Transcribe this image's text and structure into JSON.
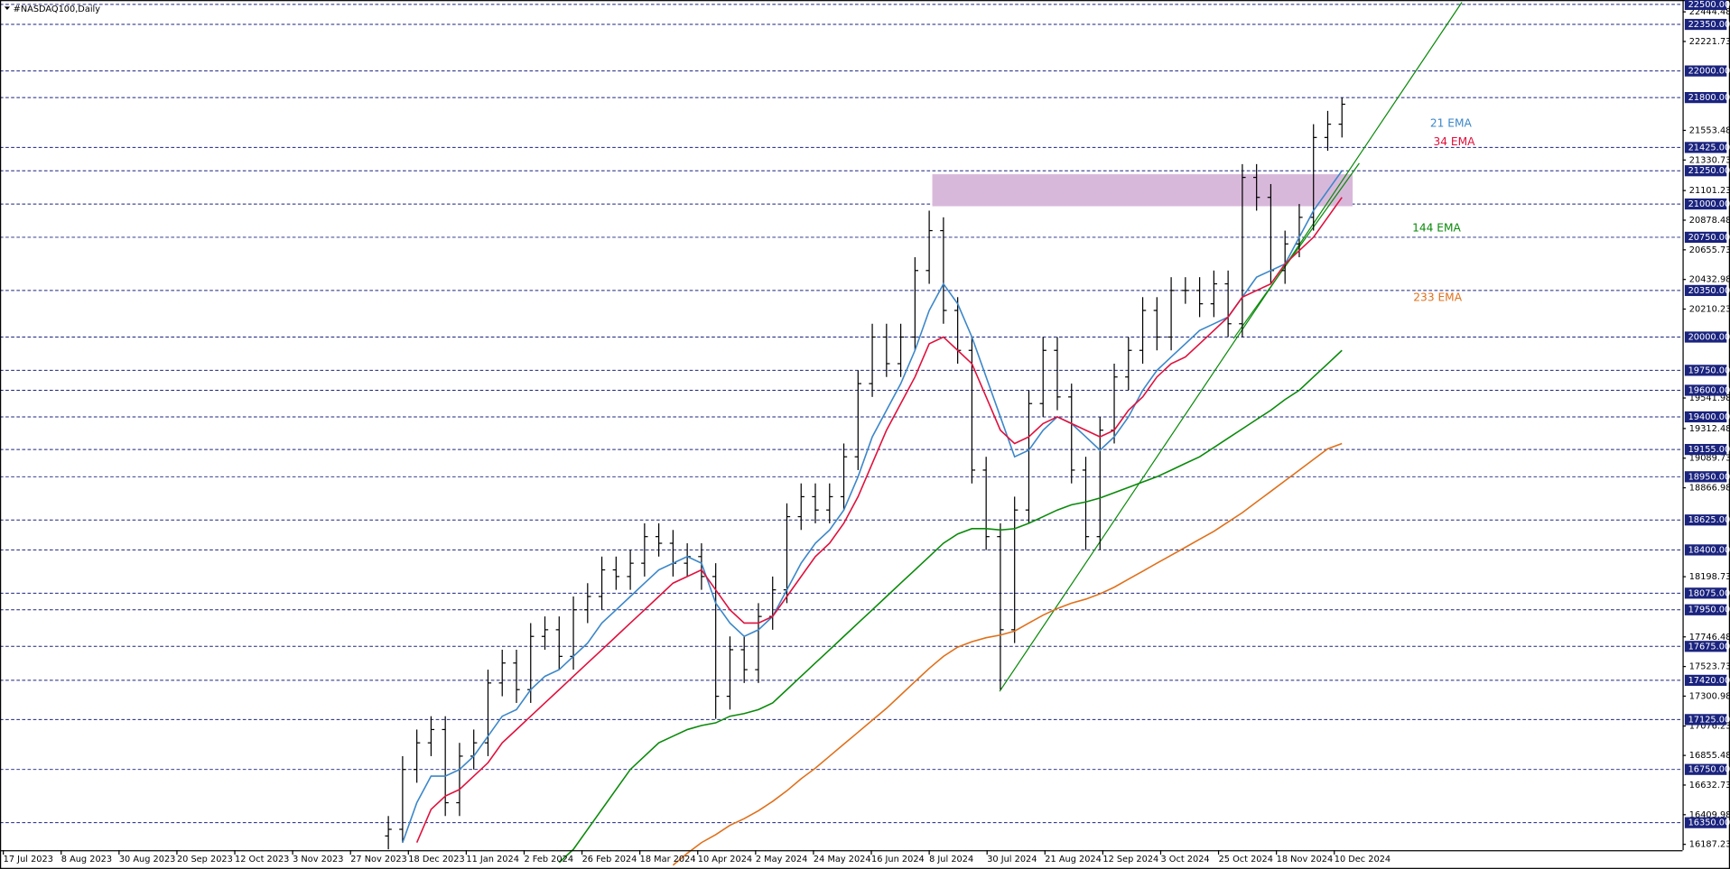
{
  "chart_data": {
    "type": "ohlc",
    "title": "#NASDAQ100,Daily",
    "x_labels": [
      "17 Jul 2023",
      "8 Aug 2023",
      "30 Aug 2023",
      "20 Sep 2023",
      "12 Oct 2023",
      "3 Nov 2023",
      "27 Nov 2023",
      "18 Dec 2023",
      "11 Jan 2024",
      "2 Feb 2024",
      "26 Feb 2024",
      "18 Mar 2024",
      "10 Apr 2024",
      "2 May 2024",
      "24 May 2024",
      "16 Jun 2024",
      "8 Jul 2024",
      "30 Jul 2024",
      "21 Aug 2024",
      "12 Sep 2024",
      "3 Oct 2024",
      "25 Oct 2024",
      "18 Nov 2024",
      "10 Dec 2024"
    ],
    "open": [
      16250,
      16300,
      16750,
      16950,
      17050,
      16500,
      16850,
      16950,
      17400,
      17550,
      17350,
      17750,
      17800,
      17600,
      17950,
      18050,
      18250,
      18200,
      18300,
      18500,
      18450,
      18300,
      18350,
      18200,
      17300,
      17650,
      17500,
      17900,
      18100,
      18650,
      18800,
      18700,
      18800,
      19100,
      19650,
      20000,
      19800,
      20000,
      20500,
      20800,
      20200,
      19900,
      19000,
      18500,
      17800,
      18700,
      19500,
      19900,
      19550,
      19000,
      18500,
      19300,
      19700,
      19900,
      20200,
      20000,
      20350,
      20350,
      20250,
      20400,
      20100,
      21200,
      21050,
      20500,
      20700,
      20900,
      21500,
      21600
    ],
    "high": [
      16400,
      16850,
      17050,
      17150,
      17150,
      16950,
      17050,
      17500,
      17650,
      17650,
      17850,
      17900,
      17900,
      18050,
      18150,
      18350,
      18350,
      18400,
      18600,
      18600,
      18550,
      18450,
      18450,
      18300,
      17750,
      17750,
      18000,
      18200,
      18750,
      18900,
      18900,
      18900,
      19200,
      19750,
      20100,
      20100,
      20100,
      20600,
      20950,
      20900,
      20300,
      20000,
      19100,
      18600,
      18800,
      19600,
      20000,
      20000,
      19650,
      19100,
      19400,
      19800,
      20000,
      20300,
      20300,
      20450,
      20450,
      20450,
      20500,
      20500,
      21300,
      21300,
      21150,
      20800,
      21000,
      21600,
      21700,
      21800
    ],
    "low": [
      16150,
      16200,
      16650,
      16850,
      16400,
      16400,
      16750,
      16850,
      17300,
      17250,
      17250,
      17650,
      17500,
      17500,
      17850,
      17950,
      18100,
      18100,
      18200,
      18350,
      18200,
      18200,
      18100,
      17130,
      17200,
      17400,
      17400,
      17800,
      18000,
      18550,
      18600,
      18600,
      18700,
      19000,
      19550,
      19700,
      19700,
      19900,
      20400,
      20100,
      19800,
      18900,
      18400,
      17350,
      17700,
      18600,
      19400,
      19450,
      18900,
      18400,
      18400,
      19200,
      19600,
      19800,
      19900,
      19900,
      20250,
      20150,
      20150,
      20000,
      20000,
      20950,
      20400,
      20400,
      20600,
      20800,
      21400,
      21500
    ],
    "close": [
      16300,
      16750,
      16950,
      17050,
      16500,
      16850,
      16950,
      17400,
      17550,
      17350,
      17750,
      17800,
      17600,
      17950,
      18050,
      18250,
      18200,
      18300,
      18500,
      18450,
      18300,
      18350,
      18200,
      17300,
      17650,
      17500,
      17900,
      18100,
      18650,
      18800,
      18700,
      18800,
      19100,
      19650,
      20000,
      19800,
      20000,
      20500,
      20800,
      20200,
      19900,
      19000,
      18500,
      17800,
      18700,
      19500,
      19900,
      19550,
      19000,
      18500,
      19300,
      19700,
      19900,
      20200,
      20000,
      20350,
      20350,
      20250,
      20400,
      20100,
      21200,
      21050,
      20500,
      20700,
      20900,
      21500,
      21600,
      21750
    ],
    "bar_color": "#000000",
    "series": [
      {
        "name": "21 EMA",
        "color": "#3b87c9",
        "values": [
          null,
          16200,
          16500,
          16700,
          16700,
          16750,
          16850,
          17000,
          17150,
          17200,
          17350,
          17450,
          17500,
          17600,
          17700,
          17850,
          17950,
          18050,
          18150,
          18250,
          18300,
          18350,
          18300,
          18000,
          17850,
          17750,
          17800,
          17900,
          18100,
          18300,
          18450,
          18550,
          18700,
          18950,
          19250,
          19450,
          19650,
          19900,
          20200,
          20400,
          20250,
          20000,
          19700,
          19400,
          19100,
          19150,
          19300,
          19400,
          19350,
          19250,
          19150,
          19250,
          19400,
          19600,
          19750,
          19850,
          19950,
          20050,
          20100,
          20150,
          20300,
          20450,
          20500,
          20550,
          20750,
          20950,
          21100,
          21250
        ]
      },
      {
        "name": "34 EMA",
        "color": "#e0103c",
        "values": [
          null,
          null,
          16200,
          16450,
          16550,
          16600,
          16700,
          16800,
          16950,
          17050,
          17150,
          17250,
          17350,
          17450,
          17550,
          17650,
          17750,
          17850,
          17950,
          18050,
          18150,
          18200,
          18250,
          18100,
          17950,
          17850,
          17850,
          17900,
          18050,
          18200,
          18350,
          18450,
          18600,
          18800,
          19050,
          19300,
          19500,
          19700,
          19950,
          20000,
          19900,
          19800,
          19550,
          19300,
          19200,
          19250,
          19350,
          19400,
          19350,
          19300,
          19250,
          19300,
          19450,
          19550,
          19700,
          19800,
          19850,
          19950,
          20050,
          20150,
          20300,
          20350,
          20400,
          20550,
          20650,
          20750,
          20900,
          21050
        ]
      },
      {
        "name": "144 EMA",
        "color": "#0a8a0a",
        "values": [
          null,
          null,
          null,
          null,
          null,
          null,
          null,
          null,
          null,
          null,
          null,
          null,
          16050,
          16150,
          16300,
          16450,
          16600,
          16750,
          16850,
          16950,
          17000,
          17050,
          17080,
          17100,
          17150,
          17170,
          17200,
          17250,
          17350,
          17450,
          17550,
          17650,
          17750,
          17850,
          17950,
          18050,
          18150,
          18250,
          18350,
          18450,
          18520,
          18560,
          18560,
          18550,
          18560,
          18600,
          18650,
          18700,
          18740,
          18760,
          18790,
          18830,
          18870,
          18910,
          18950,
          19000,
          19050,
          19100,
          19170,
          19240,
          19310,
          19380,
          19450,
          19530,
          19600,
          19700,
          19800,
          19900
        ]
      },
      {
        "name": "233 EMA",
        "color": "#e0701a",
        "values": [
          null,
          null,
          null,
          null,
          null,
          null,
          null,
          null,
          null,
          null,
          null,
          null,
          null,
          null,
          null,
          null,
          null,
          null,
          null,
          null,
          16030,
          16120,
          16200,
          16260,
          16330,
          16380,
          16440,
          16510,
          16590,
          16680,
          16760,
          16850,
          16940,
          17030,
          17120,
          17210,
          17310,
          17410,
          17510,
          17600,
          17670,
          17710,
          17740,
          17760,
          17790,
          17850,
          17910,
          17960,
          18000,
          18030,
          18070,
          18120,
          18180,
          18240,
          18300,
          18360,
          18420,
          18480,
          18540,
          18610,
          18680,
          18760,
          18840,
          18920,
          19000,
          19080,
          19160,
          19200
        ]
      }
    ],
    "ylim": [
      16143,
      22533
    ],
    "yticks": [
      22444.48,
      22221.73,
      21553.48,
      21330.73,
      21101.23,
      20878.48,
      20655.73,
      20432.98,
      20210.23,
      19541.98,
      19312.48,
      19089.73,
      18866.98,
      18198.73,
      17746.48,
      17523.73,
      17300.98,
      17076.23,
      16855.48,
      16632.73,
      16409.98,
      16187.23
    ],
    "levels": [
      {
        "value": 22500,
        "label": "22500.00"
      },
      {
        "value": 22350,
        "label": "22350.00"
      },
      {
        "value": 22000,
        "label": "22000.00"
      },
      {
        "value": 21800,
        "label": "21800.00"
      },
      {
        "value": 21425,
        "label": "21425.00"
      },
      {
        "value": 21250,
        "label": "21250.00"
      },
      {
        "value": 21000,
        "label": "21000.00"
      },
      {
        "value": 20750,
        "label": "20750.00"
      },
      {
        "value": 20350,
        "label": "20350.00"
      },
      {
        "value": 20000,
        "label": "20000.00"
      },
      {
        "value": 19750,
        "label": "19750.00"
      },
      {
        "value": 19600,
        "label": "19600.00"
      },
      {
        "value": 19400,
        "label": "19400.00"
      },
      {
        "value": 19155,
        "label": "19155.00"
      },
      {
        "value": 18950,
        "label": "18950.00"
      },
      {
        "value": 18625,
        "label": "18625.00"
      },
      {
        "value": 18400,
        "label": "18400.00"
      },
      {
        "value": 18075,
        "label": "18075.00"
      },
      {
        "value": 17950,
        "label": "17950.00"
      },
      {
        "value": 17675,
        "label": "17675.00"
      },
      {
        "value": 17420,
        "label": "17420.00"
      },
      {
        "value": 17125,
        "label": "17125.00"
      },
      {
        "value": 16750,
        "label": "16750.00"
      },
      {
        "value": 16350,
        "label": "16350.00"
      }
    ],
    "level_color": "#1a237e"
  }
}
